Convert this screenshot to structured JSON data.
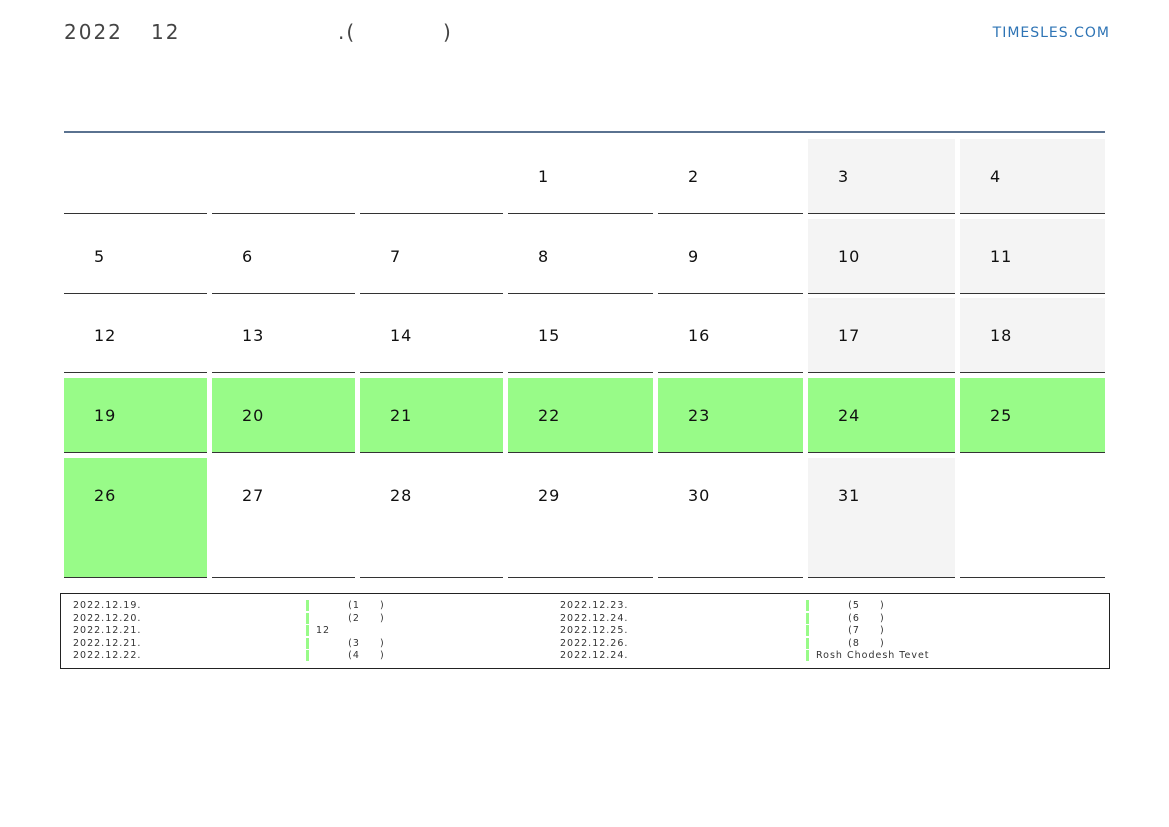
{
  "header": {
    "title_parts": [
      "2022",
      "12",
      ".(",
      ")"
    ],
    "site": "TIMESLES.COM"
  },
  "calendar": {
    "highlight_color": "#98fb88",
    "weekend_color": "#f4f4f4",
    "weeks": [
      [
        {
          "day": null
        },
        {
          "day": null
        },
        {
          "day": null
        },
        {
          "day": 1
        },
        {
          "day": 2
        },
        {
          "day": 3
        },
        {
          "day": 4
        }
      ],
      [
        {
          "day": 5
        },
        {
          "day": 6
        },
        {
          "day": 7
        },
        {
          "day": 8
        },
        {
          "day": 9
        },
        {
          "day": 10
        },
        {
          "day": 11
        }
      ],
      [
        {
          "day": 12
        },
        {
          "day": 13
        },
        {
          "day": 14
        },
        {
          "day": 15
        },
        {
          "day": 16
        },
        {
          "day": 17
        },
        {
          "day": 18
        }
      ],
      [
        {
          "day": 19,
          "highlight": true
        },
        {
          "day": 20,
          "highlight": true
        },
        {
          "day": 21,
          "highlight": true
        },
        {
          "day": 22,
          "highlight": true
        },
        {
          "day": 23,
          "highlight": true
        },
        {
          "day": 24,
          "highlight": true
        },
        {
          "day": 25,
          "highlight": true
        }
      ],
      [
        {
          "day": 26,
          "highlight": true
        },
        {
          "day": 27
        },
        {
          "day": 28
        },
        {
          "day": 29
        },
        {
          "day": 30
        },
        {
          "day": 31
        },
        {
          "day": null
        }
      ]
    ]
  },
  "events": [
    {
      "date": "2022.12.19.",
      "note": "        (1     )"
    },
    {
      "date": "2022.12.20.",
      "note": "        (2     )"
    },
    {
      "date": "2022.12.21.",
      "note": "12"
    },
    {
      "date": "2022.12.21.",
      "note": "        (3     )"
    },
    {
      "date": "2022.12.22.",
      "note": "        (4     )"
    },
    {
      "date": "2022.12.23.",
      "note": "        (5     )"
    },
    {
      "date": "2022.12.24.",
      "note": "        (6     )"
    },
    {
      "date": "2022.12.25.",
      "note": "        (7     )"
    },
    {
      "date": "2022.12.26.",
      "note": "        (8     )"
    },
    {
      "date": "2022.12.24.",
      "note": "Rosh Chodesh Tevet"
    }
  ]
}
